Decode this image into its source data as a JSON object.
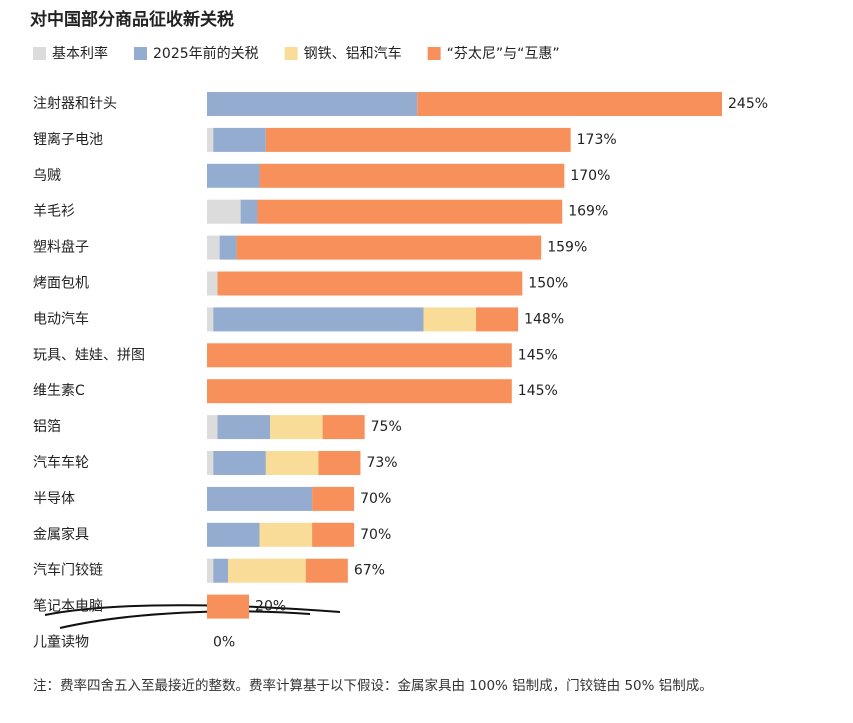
{
  "chart_data": {
    "type": "stacked-barh",
    "title": "对中国部分商品征收新关税",
    "categories": [
      "注射器和针头",
      "锂离子电池",
      "乌贼",
      "羊毛衫",
      "塑料盘子",
      "烤面包机",
      "电动汽车",
      "玩具、娃娃、拼图",
      "维生素C",
      "铝箔",
      "汽车车轮",
      "半导体",
      "金属家具",
      "汽车门铰链",
      "笔记本电脑",
      "儿童读物"
    ],
    "series": [
      {
        "name": "基本利率",
        "color": "#dcdcdc",
        "values": [
          0,
          3,
          0,
          16,
          6,
          5,
          3,
          0,
          0,
          5,
          3,
          0,
          0,
          3,
          0,
          0
        ]
      },
      {
        "name": "2025年前的关税",
        "color": "#93acd0",
        "values": [
          100,
          25,
          25,
          8,
          8,
          0,
          100,
          0,
          0,
          25,
          25,
          50,
          25,
          7,
          0,
          0
        ]
      },
      {
        "name": "钢铁、铝和汽车",
        "color": "#f9dc97",
        "values": [
          0,
          0,
          0,
          0,
          0,
          0,
          25,
          0,
          0,
          25,
          25,
          0,
          25,
          37,
          0,
          0
        ]
      },
      {
        "name": "“芬太尼”与“互惠”",
        "color": "#f7905a",
        "values": [
          145,
          145,
          145,
          145,
          145,
          145,
          20,
          145,
          145,
          20,
          20,
          20,
          20,
          20,
          20,
          0
        ]
      }
    ],
    "totals": [
      245,
      173,
      170,
      169,
      159,
      150,
      148,
      145,
      145,
      75,
      73,
      70,
      70,
      67,
      20,
      0
    ],
    "value_labels": [
      "245%",
      "173%",
      "170%",
      "169%",
      "159%",
      "150%",
      "148%",
      "145%",
      "145%",
      "75%",
      "73%",
      "70%",
      "70%",
      "67%",
      "20%",
      "0%"
    ],
    "xlim": [
      0,
      245
    ],
    "note": "注：费率四舍五入至最接近的整数。费率计算基于以下假设：金属家具由 100% 铝制成，门铰链由 50% 铝制成。"
  }
}
